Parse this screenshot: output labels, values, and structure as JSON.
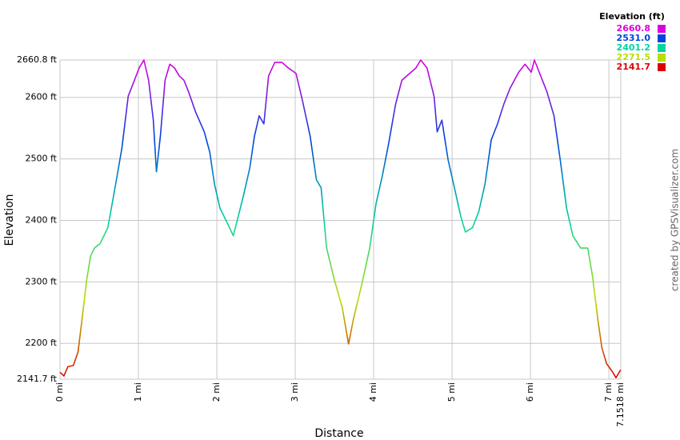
{
  "chart_data": {
    "type": "line",
    "x_label": "Distance",
    "y_label": "Elevation",
    "credit": "created by GPSVisualizer.com",
    "x": [
      0,
      0.05,
      0.1,
      0.17,
      0.23,
      0.28,
      0.34,
      0.39,
      0.44,
      0.51,
      0.61,
      0.71,
      0.79,
      0.87,
      0.95,
      1.01,
      1.07,
      1.13,
      1.19,
      1.23,
      1.28,
      1.34,
      1.4,
      1.46,
      1.52,
      1.58,
      1.64,
      1.73,
      1.84,
      1.91,
      1.97,
      2.04,
      2.14,
      2.21,
      2.3,
      2.35,
      2.42,
      2.48,
      2.54,
      2.6,
      2.66,
      2.74,
      2.83,
      2.91,
      3.01,
      3.09,
      3.19,
      3.27,
      3.33,
      3.4,
      3.5,
      3.6,
      3.68,
      3.74,
      3.85,
      3.95,
      4.03,
      4.11,
      4.19,
      4.28,
      4.36,
      4.46,
      4.54,
      4.6,
      4.68,
      4.77,
      4.81,
      4.87,
      4.95,
      5.03,
      5.11,
      5.17,
      5.26,
      5.34,
      5.42,
      5.5,
      5.58,
      5.66,
      5.74,
      5.85,
      5.93,
      6.01,
      6.05,
      6.13,
      6.21,
      6.3,
      6.38,
      6.46,
      6.54,
      6.64,
      6.73,
      6.79,
      6.86,
      6.91,
      6.97,
      7.05,
      7.09,
      7.15
    ],
    "values": [
      2153,
      2147,
      2162,
      2164,
      2186,
      2238,
      2303,
      2342,
      2355,
      2362,
      2388,
      2459,
      2518,
      2602,
      2628,
      2648,
      2660.8,
      2628,
      2563,
      2479,
      2537,
      2628,
      2654,
      2648,
      2635,
      2628,
      2609,
      2576,
      2544,
      2511,
      2459,
      2420,
      2394,
      2375,
      2420,
      2446,
      2485,
      2537,
      2570,
      2557,
      2635,
      2657,
      2657,
      2648,
      2639,
      2596,
      2537,
      2466,
      2453,
      2355,
      2303,
      2258,
      2199,
      2238,
      2297,
      2355,
      2427,
      2472,
      2524,
      2589,
      2628,
      2639,
      2648,
      2660.8,
      2648,
      2602,
      2544,
      2563,
      2498,
      2453,
      2407,
      2381,
      2388,
      2414,
      2459,
      2531,
      2557,
      2589,
      2615,
      2641,
      2654,
      2641,
      2660.8,
      2635,
      2609,
      2570,
      2498,
      2420,
      2375,
      2355,
      2355,
      2310,
      2238,
      2193,
      2167,
      2153,
      2144,
      2157
    ],
    "xlim": [
      0,
      7.1518
    ],
    "ylim": [
      2141.7,
      2660.8
    ],
    "xticks": [
      {
        "value": 0,
        "label": "0 mi"
      },
      {
        "value": 1,
        "label": "1 mi"
      },
      {
        "value": 2,
        "label": "2 mi"
      },
      {
        "value": 3,
        "label": "3 mi"
      },
      {
        "value": 4,
        "label": "4 mi"
      },
      {
        "value": 5,
        "label": "5 mi"
      },
      {
        "value": 6,
        "label": "6 mi"
      },
      {
        "value": 7,
        "label": "7 mi"
      },
      {
        "value": 7.1518,
        "label": "7.1518 mi"
      }
    ],
    "yticks": [
      {
        "value": 2141.7,
        "label": "2141.7 ft"
      },
      {
        "value": 2200,
        "label": "2200 ft"
      },
      {
        "value": 2300,
        "label": "2300 ft"
      },
      {
        "value": 2400,
        "label": "2400 ft"
      },
      {
        "value": 2500,
        "label": "2500 ft"
      },
      {
        "value": 2600,
        "label": "2600 ft"
      },
      {
        "value": 2660.8,
        "label": "2660.8 ft"
      }
    ],
    "grid": true,
    "color_scale": {
      "title": "Elevation (ft)",
      "stops": [
        {
          "value": 2660.8,
          "label": "2660.8",
          "color": "#dd00dd"
        },
        {
          "value": 2531.0,
          "label": "2531.0",
          "color": "#0044dd"
        },
        {
          "value": 2401.2,
          "label": "2401.2",
          "color": "#00d4a0"
        },
        {
          "value": 2271.5,
          "label": "2271.5",
          "color": "#bbdd00"
        },
        {
          "value": 2141.7,
          "label": "2141.7",
          "color": "#dd0000"
        }
      ]
    }
  }
}
